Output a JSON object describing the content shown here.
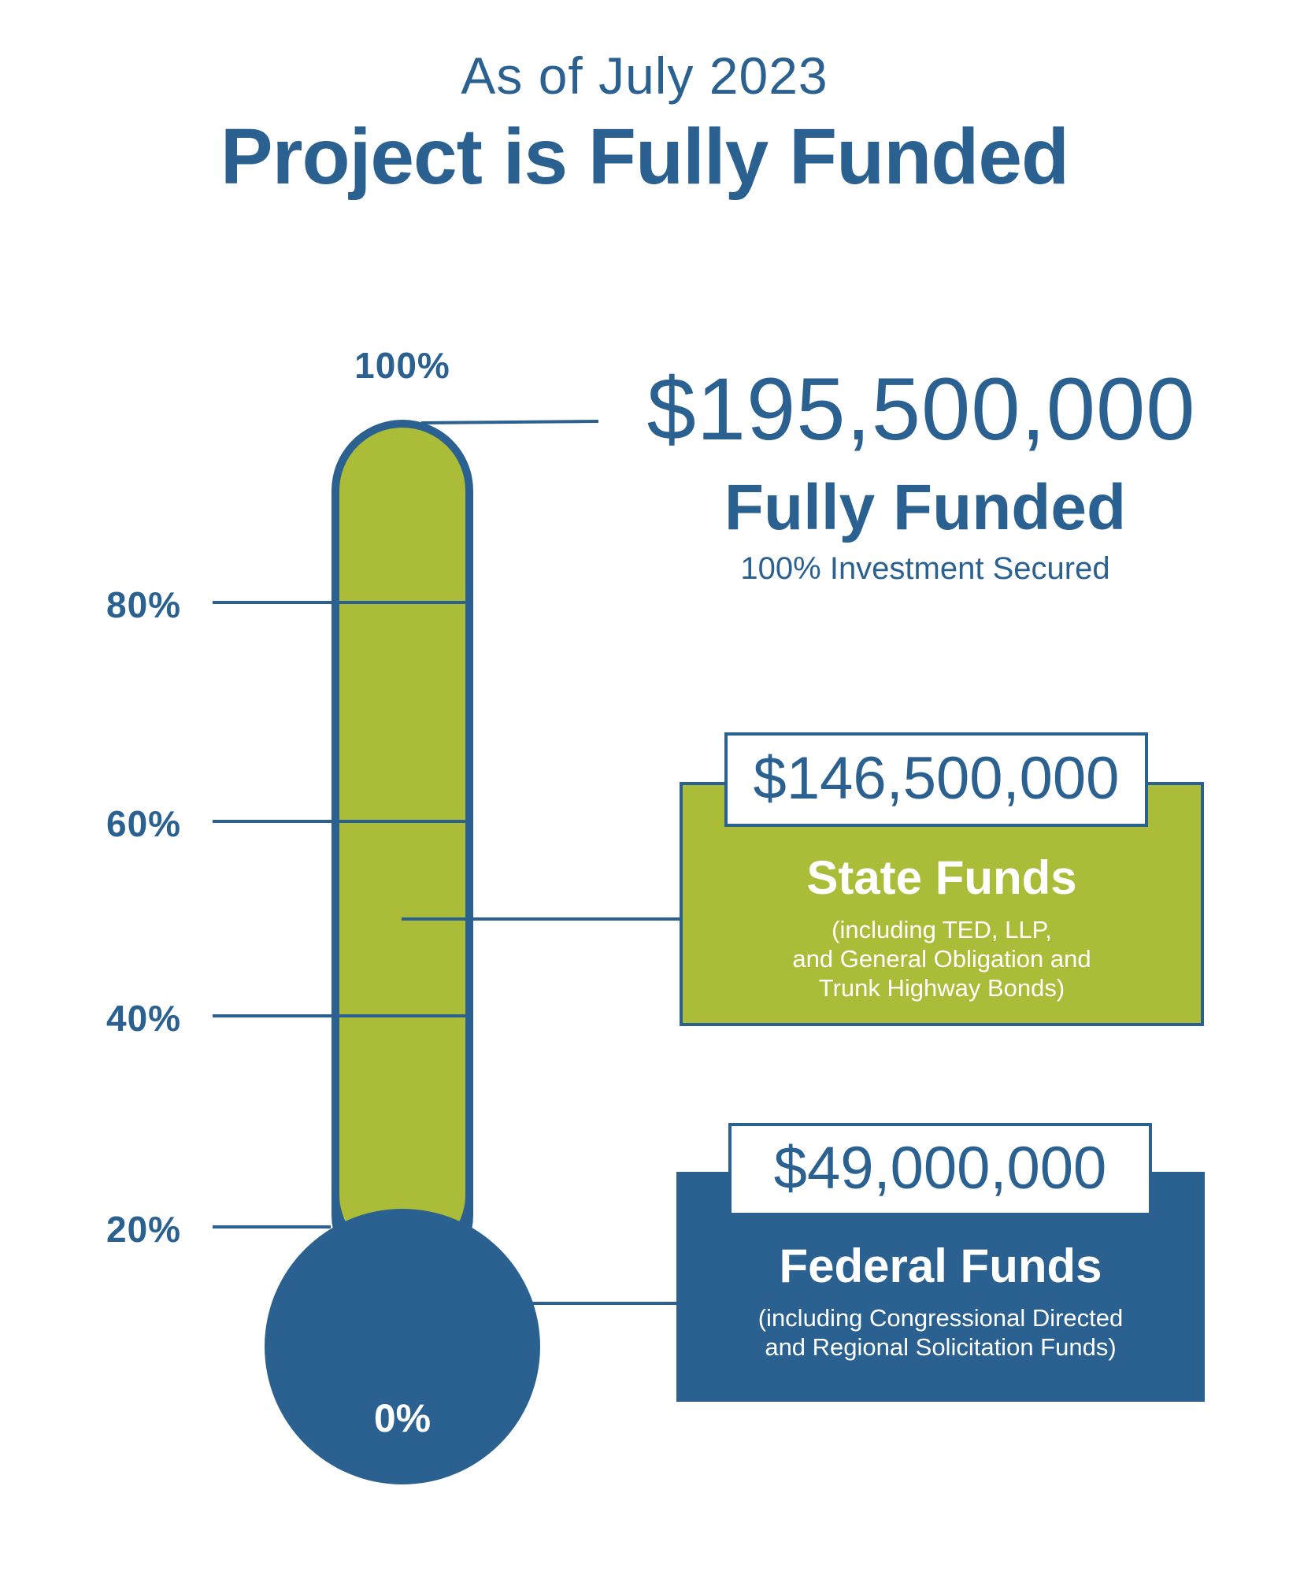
{
  "header": {
    "subtitle": "As of July 2023",
    "title": "Project is Fully Funded"
  },
  "colors": {
    "primary": "#2a6190",
    "state": "#aabc38",
    "background": "#ffffff"
  },
  "chart_data": {
    "type": "stacked-bar",
    "title": "Project is Fully Funded",
    "subtitle": "As of July 2023",
    "y_ticks": [
      "0%",
      "20%",
      "40%",
      "60%",
      "80%",
      "100%"
    ],
    "ylim": [
      0,
      100
    ],
    "total": {
      "amount": "$195,500,000",
      "value": 195500000,
      "status": "Fully Funded",
      "note": "100% Investment Secured",
      "percent": 100
    },
    "series": [
      {
        "name": "Federal Funds",
        "amount": "$49,000,000",
        "value": 49000000,
        "percent": 25,
        "note": "(including Congressional Directed and Regional Solicitation Funds)",
        "note_lines": [
          "(including Congressional Directed",
          "and Regional Solicitation Funds)"
        ],
        "color": "#2a6190"
      },
      {
        "name": "State Funds",
        "amount": "$146,500,000",
        "value": 146500000,
        "percent": 75,
        "note": "(including TED, LLP, and General Obligation and Trunk Highway Bonds)",
        "note_lines": [
          "(including TED, LLP,",
          "and General Obligation and",
          "Trunk Highway Bonds)"
        ],
        "color": "#aabc38"
      }
    ]
  }
}
